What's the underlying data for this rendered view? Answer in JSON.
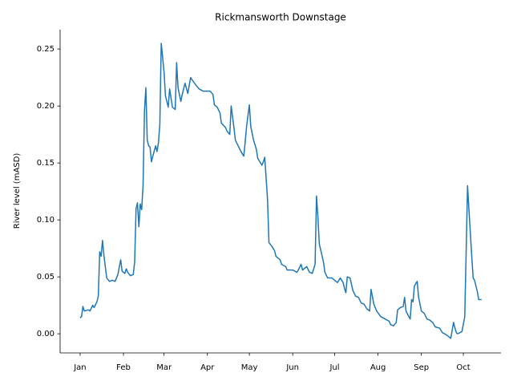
{
  "chart_data": {
    "type": "line",
    "title": "Rickmansworth Downstage",
    "y_label": "River level (mASD)",
    "color": "#1f77b4",
    "x": [
      0,
      1,
      2,
      3,
      6,
      7,
      9,
      10,
      12,
      13,
      14,
      15,
      16,
      17,
      19,
      21,
      23,
      25,
      27,
      29,
      30,
      32,
      33,
      34,
      36,
      38,
      39,
      40,
      41,
      42,
      43,
      44,
      45,
      46,
      47,
      48,
      49,
      50,
      51,
      52,
      54,
      55,
      56,
      57,
      58,
      60,
      61,
      63,
      64,
      66,
      68,
      69,
      70,
      72,
      73,
      75,
      77,
      79,
      80,
      83,
      85,
      88,
      93,
      95,
      96,
      98,
      100,
      101,
      104,
      105,
      107,
      108,
      110,
      111,
      113,
      115,
      117,
      118,
      119,
      121,
      122,
      124,
      126,
      127,
      130,
      131,
      132,
      134,
      135,
      137,
      139,
      140,
      143,
      144,
      147,
      148,
      152,
      155,
      156,
      158,
      159,
      162,
      164,
      166,
      168,
      169,
      170,
      171,
      174,
      175,
      177,
      180,
      182,
      184,
      186,
      188,
      189,
      190,
      191,
      193,
      195,
      197,
      199,
      201,
      203,
      205,
      207,
      208,
      210,
      212,
      215,
      218,
      221,
      222,
      224,
      226,
      227,
      229,
      231,
      232,
      233,
      235,
      236,
      237,
      238,
      239,
      241,
      242,
      244,
      246,
      248,
      250,
      252,
      254,
      257,
      259,
      262,
      265,
      267,
      268,
      269,
      270,
      273,
      275,
      276,
      277,
      278,
      280,
      281,
      282,
      284,
      285,
      287
    ],
    "values": [
      0.014,
      0.015,
      0.024,
      0.02,
      0.021,
      0.02,
      0.025,
      0.023,
      0.028,
      0.033,
      0.072,
      0.068,
      0.082,
      0.069,
      0.049,
      0.046,
      0.047,
      0.046,
      0.052,
      0.065,
      0.055,
      0.053,
      0.057,
      0.054,
      0.051,
      0.052,
      0.063,
      0.11,
      0.115,
      0.094,
      0.114,
      0.109,
      0.13,
      0.195,
      0.216,
      0.17,
      0.165,
      0.164,
      0.151,
      0.156,
      0.165,
      0.16,
      0.168,
      0.184,
      0.255,
      0.23,
      0.209,
      0.199,
      0.215,
      0.199,
      0.197,
      0.238,
      0.216,
      0.204,
      0.21,
      0.22,
      0.211,
      0.225,
      0.223,
      0.218,
      0.215,
      0.213,
      0.213,
      0.21,
      0.201,
      0.199,
      0.194,
      0.185,
      0.181,
      0.178,
      0.175,
      0.2,
      0.181,
      0.17,
      0.165,
      0.16,
      0.156,
      0.168,
      0.182,
      0.201,
      0.182,
      0.17,
      0.162,
      0.154,
      0.148,
      0.151,
      0.155,
      0.118,
      0.08,
      0.077,
      0.073,
      0.068,
      0.065,
      0.061,
      0.059,
      0.056,
      0.056,
      0.054,
      0.056,
      0.061,
      0.056,
      0.059,
      0.054,
      0.053,
      0.061,
      0.121,
      0.103,
      0.079,
      0.063,
      0.054,
      0.049,
      0.049,
      0.047,
      0.045,
      0.049,
      0.045,
      0.04,
      0.036,
      0.05,
      0.049,
      0.038,
      0.033,
      0.032,
      0.027,
      0.026,
      0.022,
      0.02,
      0.039,
      0.026,
      0.02,
      0.015,
      0.013,
      0.011,
      0.008,
      0.007,
      0.01,
      0.021,
      0.023,
      0.024,
      0.032,
      0.02,
      0.015,
      0.013,
      0.03,
      0.028,
      0.042,
      0.046,
      0.032,
      0.02,
      0.018,
      0.013,
      0.012,
      0.01,
      0.006,
      0.005,
      0.001,
      -0.001,
      -0.004,
      0.01,
      0.005,
      0.001,
      0.0,
      0.002,
      0.015,
      0.072,
      0.13,
      0.109,
      0.068,
      0.049,
      0.047,
      0.037,
      0.03,
      0.03
    ],
    "xlim": [
      -14.3,
      300.9
    ],
    "xticks": [
      {
        "value": 0,
        "label": "Jan"
      },
      {
        "value": 31,
        "label": "Feb"
      },
      {
        "value": 60,
        "label": "Mar"
      },
      {
        "value": 91,
        "label": "Apr"
      },
      {
        "value": 121,
        "label": "May"
      },
      {
        "value": 152,
        "label": "Jun"
      },
      {
        "value": 182,
        "label": "Jul"
      },
      {
        "value": 213,
        "label": "Aug"
      },
      {
        "value": 244,
        "label": "Sep"
      },
      {
        "value": 274,
        "label": "Oct"
      }
    ],
    "ylim": [
      -0.0168,
      0.267
    ],
    "yticks": [
      {
        "value": 0,
        "label": "0.00"
      },
      0.05,
      {
        "value": 0.1,
        "label": "0.10"
      },
      0.15,
      {
        "value": 0.2,
        "label": "0.20"
      },
      0.25
    ],
    "grid": false
  }
}
